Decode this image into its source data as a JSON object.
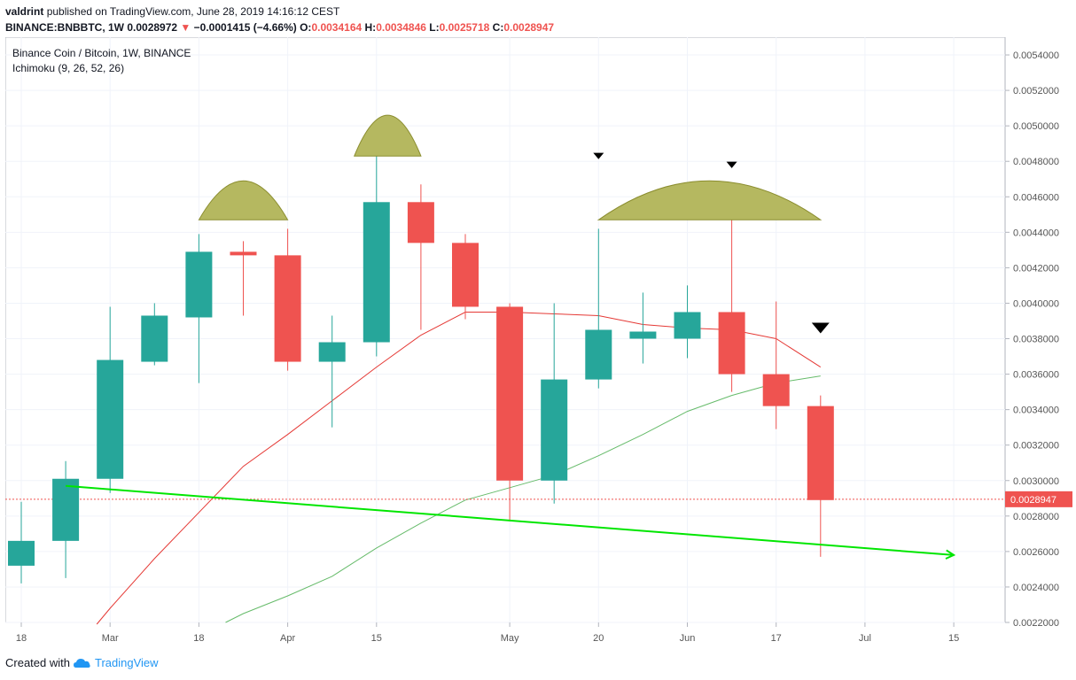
{
  "header": {
    "author": "valdrint",
    "published_text": "published on TradingView.com, June 28, 2019 14:16:12 CEST",
    "symbol": "BINANCE:BNBBTC, 1W",
    "last": "0.0028972",
    "change": "−0.0001415 (−4.66%)",
    "open_label": "O:",
    "open": "0.0034164",
    "high_label": "H:",
    "high": "0.0034846",
    "low_label": "L:",
    "low": "0.0025718",
    "close_label": "C:",
    "close": "0.0028947"
  },
  "legend": {
    "pair": "Binance Coin / Bitcoin, 1W, BINANCE",
    "indicator": "Ichimoku (9, 26, 52, 26)"
  },
  "footer": {
    "created_with": "Created with",
    "brand": "TradingView"
  },
  "colors": {
    "up": "#26a69a",
    "down": "#ef5350",
    "conversion_line": "#e53935",
    "base_line": "#66bb6a",
    "trendline": "#00e600",
    "shape_fill": "#b5b860",
    "shape_stroke": "#8b8d2f",
    "grid": "#f0f3fa",
    "axis_text": "#555555"
  },
  "chart_data": {
    "type": "candlestick",
    "title": "Binance Coin / Bitcoin, 1W, BINANCE",
    "ylim": [
      0.0022,
      0.0055
    ],
    "y_ticks": [
      "0.0022000",
      "0.0024000",
      "0.0026000",
      "0.0028000",
      "0.0030000",
      "0.0032000",
      "0.0034000",
      "0.0036000",
      "0.0038000",
      "0.0040000",
      "0.0042000",
      "0.0044000",
      "0.0046000",
      "0.0048000",
      "0.0050000",
      "0.0052000",
      "0.0054000"
    ],
    "x_ticks": [
      {
        "label": "18",
        "week": 0
      },
      {
        "label": "Mar",
        "week": 2
      },
      {
        "label": "18",
        "week": 4
      },
      {
        "label": "Apr",
        "week": 6
      },
      {
        "label": "15",
        "week": 8
      },
      {
        "label": "May",
        "week": 11
      },
      {
        "label": "20",
        "week": 13
      },
      {
        "label": "Jun",
        "week": 15
      },
      {
        "label": "17",
        "week": 17
      },
      {
        "label": "Jul",
        "week": 19
      },
      {
        "label": "15",
        "week": 21
      }
    ],
    "candles": [
      {
        "o": 0.00252,
        "h": 0.00288,
        "l": 0.00242,
        "c": 0.00266
      },
      {
        "o": 0.00266,
        "h": 0.00311,
        "l": 0.00245,
        "c": 0.00301
      },
      {
        "o": 0.00301,
        "h": 0.00398,
        "l": 0.00293,
        "c": 0.00368
      },
      {
        "o": 0.00367,
        "h": 0.004,
        "l": 0.00365,
        "c": 0.00393
      },
      {
        "o": 0.00392,
        "h": 0.00439,
        "l": 0.00355,
        "c": 0.00429
      },
      {
        "o": 0.00429,
        "h": 0.00435,
        "l": 0.00393,
        "c": 0.00427
      },
      {
        "o": 0.00427,
        "h": 0.00442,
        "l": 0.00362,
        "c": 0.00367
      },
      {
        "o": 0.00367,
        "h": 0.00393,
        "l": 0.0033,
        "c": 0.00378
      },
      {
        "o": 0.00378,
        "h": 0.00483,
        "l": 0.0037,
        "c": 0.00457
      },
      {
        "o": 0.00457,
        "h": 0.00467,
        "l": 0.00385,
        "c": 0.00434
      },
      {
        "o": 0.00434,
        "h": 0.00439,
        "l": 0.00391,
        "c": 0.00398
      },
      {
        "o": 0.00398,
        "h": 0.004,
        "l": 0.00277,
        "c": 0.003
      },
      {
        "o": 0.003,
        "h": 0.004,
        "l": 0.00287,
        "c": 0.00357
      },
      {
        "o": 0.00357,
        "h": 0.00442,
        "l": 0.00352,
        "c": 0.00385
      },
      {
        "o": 0.0038,
        "h": 0.00406,
        "l": 0.00366,
        "c": 0.00384
      },
      {
        "o": 0.0038,
        "h": 0.0041,
        "l": 0.00369,
        "c": 0.00395
      },
      {
        "o": 0.00395,
        "h": 0.00449,
        "l": 0.0035,
        "c": 0.0036
      },
      {
        "o": 0.0036,
        "h": 0.00401,
        "l": 0.00329,
        "c": 0.00342
      },
      {
        "o": 0.00342,
        "h": 0.00348,
        "l": 0.00257,
        "c": 0.00289
      }
    ],
    "conversion_line": [
      {
        "week": 1.7,
        "v": 0.00219
      },
      {
        "week": 2,
        "v": 0.00228
      },
      {
        "week": 3,
        "v": 0.00256
      },
      {
        "week": 4,
        "v": 0.00282
      },
      {
        "week": 5,
        "v": 0.00308
      },
      {
        "week": 6,
        "v": 0.00326
      },
      {
        "week": 7,
        "v": 0.00345
      },
      {
        "week": 8,
        "v": 0.00364
      },
      {
        "week": 9,
        "v": 0.00382
      },
      {
        "week": 10,
        "v": 0.00395
      },
      {
        "week": 11,
        "v": 0.00395
      },
      {
        "week": 12,
        "v": 0.00394
      },
      {
        "week": 13,
        "v": 0.00393
      },
      {
        "week": 14,
        "v": 0.00388
      },
      {
        "week": 15,
        "v": 0.00386
      },
      {
        "week": 16,
        "v": 0.00385
      },
      {
        "week": 17,
        "v": 0.0038
      },
      {
        "week": 18,
        "v": 0.00364
      }
    ],
    "base_line": [
      {
        "week": 4.6,
        "v": 0.0022
      },
      {
        "week": 5,
        "v": 0.00225
      },
      {
        "week": 6,
        "v": 0.00235
      },
      {
        "week": 7,
        "v": 0.00246
      },
      {
        "week": 8,
        "v": 0.00262
      },
      {
        "week": 9,
        "v": 0.00276
      },
      {
        "week": 10,
        "v": 0.00289
      },
      {
        "week": 11,
        "v": 0.00296
      },
      {
        "week": 12,
        "v": 0.00303
      },
      {
        "week": 13,
        "v": 0.00314
      },
      {
        "week": 14,
        "v": 0.00326
      },
      {
        "week": 15,
        "v": 0.00339
      },
      {
        "week": 16,
        "v": 0.00348
      },
      {
        "week": 17,
        "v": 0.00355
      },
      {
        "week": 18,
        "v": 0.00359
      }
    ],
    "trendline": {
      "start": {
        "week": 1,
        "v": 0.00297
      },
      "end": {
        "week": 21,
        "v": 0.00258
      }
    },
    "domes": [
      {
        "week_start": 4,
        "week_end": 6,
        "v_base": 0.00447,
        "v_top": 0.00469
      },
      {
        "week_start": 7.5,
        "week_end": 9,
        "v_base": 0.00483,
        "v_top": 0.00506
      },
      {
        "week_start": 13,
        "week_end": 18,
        "v_base": 0.00447,
        "v_top": 0.00469
      }
    ],
    "markers": [
      {
        "week": 13,
        "v": 0.00483
      },
      {
        "week": 16,
        "v": 0.00478
      },
      {
        "week": 18,
        "v": 0.00386
      }
    ],
    "last_price": "0.0028947",
    "last_price_value": 0.0028947
  }
}
